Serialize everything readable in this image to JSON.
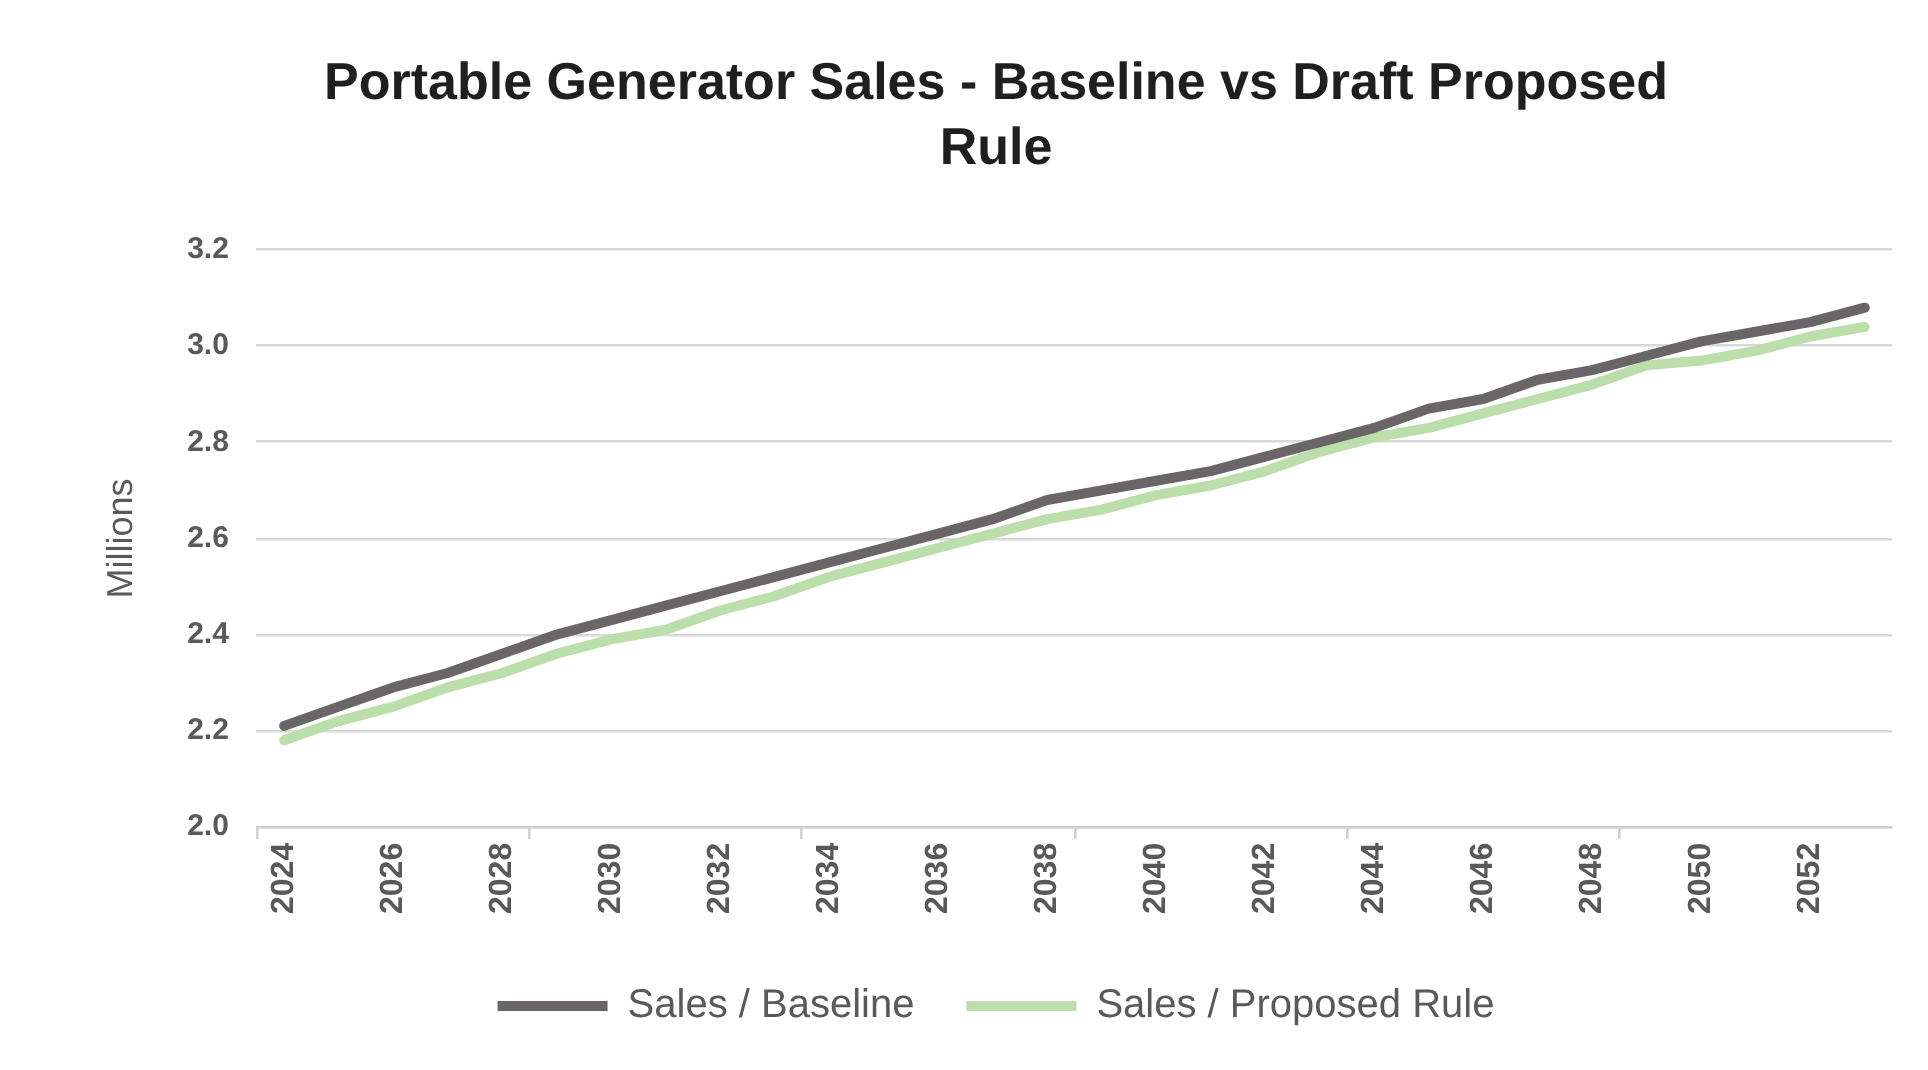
{
  "chart_data": {
    "type": "line",
    "title": "Portable Generator Sales - Baseline vs Draft Proposed Rule",
    "ylabel": "Millions",
    "categories": [
      "2024",
      null,
      "2026",
      null,
      "2028",
      null,
      "2030",
      null,
      "2032",
      null,
      "2034",
      null,
      "2036",
      null,
      "2038",
      null,
      "2040",
      null,
      "2042",
      null,
      "2044",
      null,
      "2046",
      null,
      "2048",
      null,
      "2050",
      null,
      "2052",
      null
    ],
    "series": [
      {
        "name": "Sales / Baseline",
        "color": "#6a6566",
        "values": [
          2.21,
          2.25,
          2.29,
          2.32,
          2.36,
          2.4,
          2.43,
          2.46,
          2.49,
          2.52,
          2.55,
          2.58,
          2.61,
          2.64,
          2.68,
          2.7,
          2.72,
          2.74,
          2.77,
          2.8,
          2.83,
          2.87,
          2.89,
          2.93,
          2.95,
          2.98,
          3.01,
          3.03,
          3.05,
          3.08
        ]
      },
      {
        "name": "Sales / Proposed Rule",
        "color": "#bcdeab",
        "values": [
          2.18,
          2.22,
          2.25,
          2.29,
          2.32,
          2.36,
          2.39,
          2.41,
          2.45,
          2.48,
          2.52,
          2.55,
          2.58,
          2.61,
          2.64,
          2.66,
          2.69,
          2.71,
          2.74,
          2.78,
          2.81,
          2.83,
          2.86,
          2.89,
          2.92,
          2.96,
          2.97,
          2.99,
          3.02,
          3.04
        ]
      }
    ],
    "ylim": [
      2,
      3.2
    ],
    "yticks": [
      {
        "value": 2,
        "label": "2.0"
      },
      2.2,
      2.4,
      2.6,
      2.8,
      {
        "value": 3,
        "label": "3.0"
      },
      3.2
    ],
    "grid": "y",
    "legend": "bottom",
    "marker": "none",
    "line_style": "solid"
  }
}
